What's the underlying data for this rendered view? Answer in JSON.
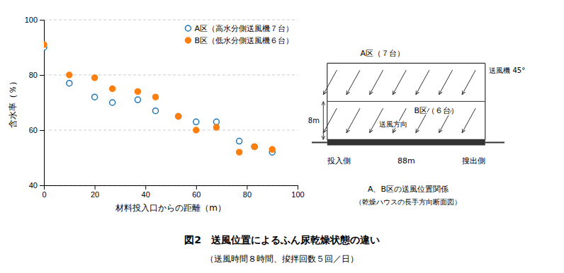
{
  "chart_data": {
    "type": "scatter",
    "title": "図2　送風位置によるふん尿乾燥状態の違い",
    "subtitle": "（送風時間８時間、捘拌回数５回／日）",
    "xlabel": "材料投入口からの距離（m）",
    "ylabel": "含水率（％）",
    "xlim": [
      0,
      100
    ],
    "ylim": [
      40,
      100
    ],
    "xticks": [
      0,
      20,
      40,
      60,
      80,
      100
    ],
    "yticks": [
      40,
      60,
      80,
      100
    ],
    "grid": true,
    "legend": "upper right",
    "series": [
      {
        "name": "A区（高水分側送風機７台）",
        "marker": "open-circle",
        "x": [
          0,
          10,
          20,
          27,
          37,
          44,
          53,
          60,
          68,
          77,
          83,
          90
        ],
        "values": [
          90,
          77,
          72,
          70,
          71,
          67,
          65,
          63,
          63,
          56,
          54,
          52
        ]
      },
      {
        "name": "B区（低水分側送風機６台）",
        "marker": "filled-circle",
        "x": [
          0,
          10,
          20,
          27,
          37,
          44,
          53,
          60,
          68,
          77,
          83,
          90
        ],
        "values": [
          91,
          80,
          79,
          75,
          74,
          72,
          65,
          60,
          61,
          52,
          54,
          53
        ]
      }
    ],
    "annotations": [
      "A区（７台）",
      "送風機 45°",
      "B区（６台）",
      "8m",
      "送風方向",
      "投入側",
      "88m",
      "搜出側",
      "A、B区の送風位置関係",
      "（乾燥ハウスの長手方向断面図）"
    ]
  }
}
